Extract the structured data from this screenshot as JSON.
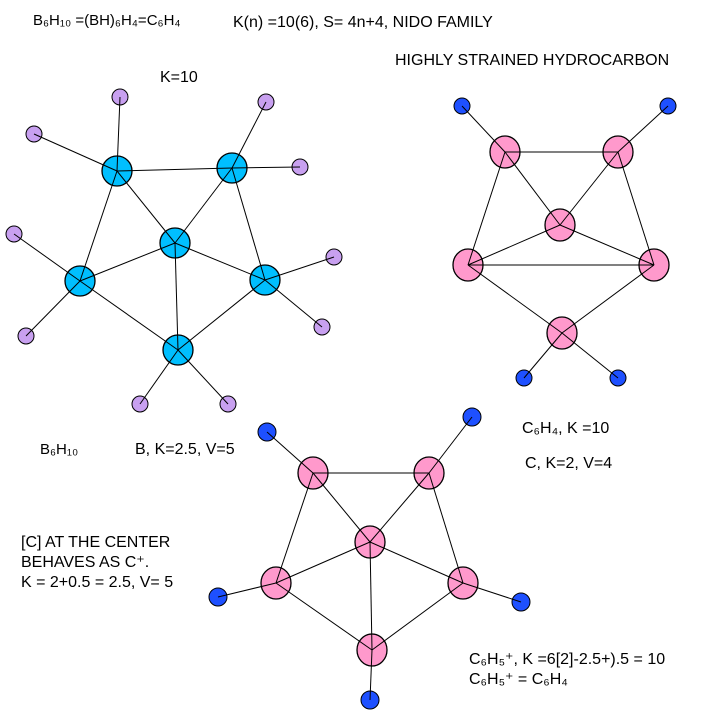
{
  "labels": {
    "formula": "B₆H₁₀ =(BH)₆H₄=C₆H₄",
    "family": "K(n) =10(6), S= 4n+4, NIDO FAMILY",
    "strained": "HIGHLY STRAINED HYDROCARBON",
    "k10": "K=10",
    "b6h10": "B₆H₁₀",
    "boron": "B, K=2.5, V=5",
    "c6h4": "C₆H₄, K =10",
    "carbon": "C, K=2, V=4",
    "center1": "[C] AT THE CENTER",
    "center2": "BEHAVES AS C⁺.",
    "center3": "K = 2+0.5 = 2.5, V= 5",
    "cation1": "C₆H₅⁺, K =6[2]-2.5+).5 = 10",
    "cation2": "C₆H₅⁺ = C₆H₄"
  },
  "colors": {
    "boron": "#00bfff",
    "boron_h": "#c8a0f0",
    "carbon": "#ff99cc",
    "carbon_h": "#1e50ff"
  },
  "molecules": [
    {
      "name": "B6H10",
      "atom": "boron",
      "h": "boron_h"
    },
    {
      "name": "C6H4",
      "atom": "carbon",
      "h": "carbon_h"
    },
    {
      "name": "C6H5+",
      "atom": "carbon",
      "h": "carbon_h"
    }
  ]
}
